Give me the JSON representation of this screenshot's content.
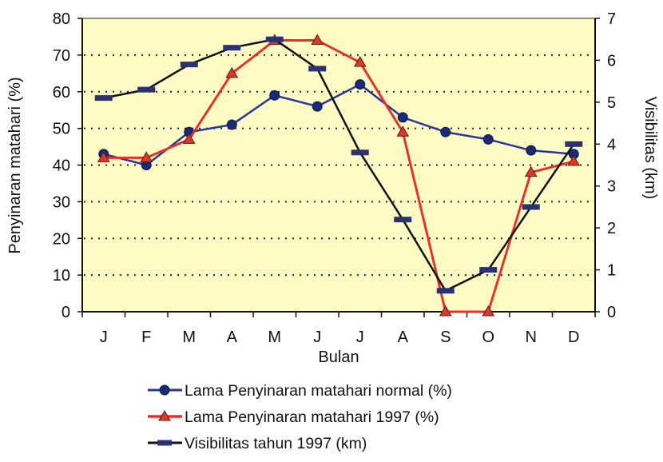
{
  "chart_data": {
    "type": "line",
    "xlabel": "Bulan",
    "ylabel": "Penyinaran matahari (%)",
    "y2label": "Visibilitas (km)",
    "categories": [
      "J",
      "F",
      "M",
      "A",
      "M",
      "J",
      "J",
      "A",
      "S",
      "O",
      "N",
      "D"
    ],
    "ylim": [
      0,
      80
    ],
    "y2lim": [
      0,
      7
    ],
    "yticks": [
      "0",
      "10",
      "20",
      "30",
      "40",
      "50",
      "60",
      "70",
      "80"
    ],
    "y2ticks": [
      "0",
      "1",
      "2",
      "3",
      "4",
      "5",
      "6",
      "7"
    ],
    "grid": true,
    "grid_style": "dotted",
    "legend": "bottom",
    "background_color": "#FFFBC5",
    "series": [
      {
        "name": "Lama Penyinaran matahari normal (%)",
        "axis": "left",
        "marker": "circle",
        "line_color": "#27379A",
        "marker_color": "#1B2A72",
        "values": [
          43,
          40,
          49,
          51,
          59,
          56,
          62,
          53,
          49,
          47,
          44,
          43
        ]
      },
      {
        "name": "Lama Penyinaran matahari 1997 (%)",
        "axis": "left",
        "marker": "triangle",
        "line_color": "#E5332A",
        "marker_color": "#D63A2F",
        "values": [
          42,
          42,
          47,
          65,
          74,
          74,
          68,
          49,
          0,
          0,
          38,
          41
        ]
      },
      {
        "name": "Visibilitas tahun 1997 (km)",
        "axis": "right",
        "marker": "dash",
        "line_color": "#111111",
        "marker_color": "#283275",
        "values": [
          5.1,
          5.3,
          5.9,
          6.3,
          6.5,
          5.8,
          3.8,
          2.2,
          0.5,
          1.0,
          2.5,
          4.0
        ]
      }
    ]
  }
}
